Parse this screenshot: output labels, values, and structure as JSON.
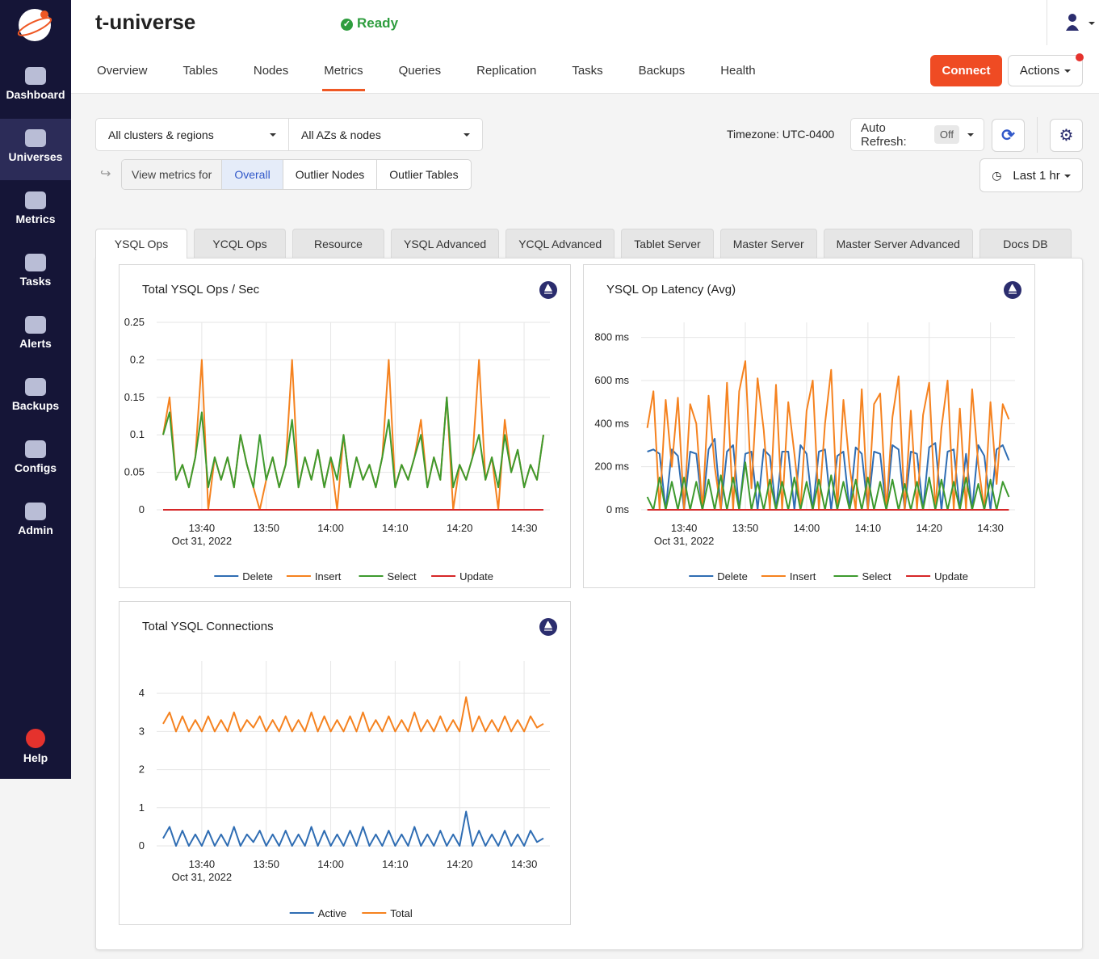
{
  "sidebar": {
    "items": [
      "Dashboard",
      "Universes",
      "Metrics",
      "Tasks",
      "Alerts",
      "Backups",
      "Configs",
      "Admin"
    ],
    "active": 1,
    "help": "Help"
  },
  "header": {
    "title": "t-universe",
    "status": "Ready",
    "tabs": [
      "Overview",
      "Tables",
      "Nodes",
      "Metrics",
      "Queries",
      "Replication",
      "Tasks",
      "Backups",
      "Health"
    ],
    "active_tab": 3,
    "connect": "Connect",
    "actions": "Actions"
  },
  "filters": {
    "clusters": "All clusters & regions",
    "nodes": "All AZs & nodes",
    "timezone": "Timezone: UTC-0400",
    "auto_refresh": "Auto Refresh:",
    "auto_refresh_value": "Off",
    "view_metrics_for": "View metrics for",
    "view_options": [
      "Overall",
      "Outlier Nodes",
      "Outlier Tables"
    ],
    "active_view": 0,
    "time_range": "Last 1 hr"
  },
  "metric_tabs": [
    "YSQL Ops",
    "YCQL Ops",
    "Resource",
    "YSQL Advanced",
    "YCQL Advanced",
    "Tablet Server",
    "Master Server",
    "Master Server Advanced",
    "Docs DB"
  ],
  "active_metric_tab": 0,
  "chart_data": [
    {
      "type": "line",
      "title": "Total YSQL Ops / Sec",
      "x": [
        "13:34",
        "13:35",
        "13:36",
        "13:37",
        "13:38",
        "13:39",
        "13:40",
        "13:41",
        "13:42",
        "13:43",
        "13:44",
        "13:45",
        "13:46",
        "13:47",
        "13:48",
        "13:49",
        "13:50",
        "13:51",
        "13:52",
        "13:53",
        "13:54",
        "13:55",
        "13:56",
        "13:57",
        "13:58",
        "13:59",
        "14:00",
        "14:01",
        "14:02",
        "14:03",
        "14:04",
        "14:05",
        "14:06",
        "14:07",
        "14:08",
        "14:09",
        "14:10",
        "14:11",
        "14:12",
        "14:13",
        "14:14",
        "14:15",
        "14:16",
        "14:17",
        "14:18",
        "14:19",
        "14:20",
        "14:21",
        "14:22",
        "14:23",
        "14:24",
        "14:25",
        "14:26",
        "14:27",
        "14:28",
        "14:29",
        "14:30",
        "14:31",
        "14:32",
        "14:33"
      ],
      "xlim": [
        "13:33",
        "14:34"
      ],
      "xticks": [
        "13:40",
        "13:50",
        "14:00",
        "14:10",
        "14:20",
        "14:30"
      ],
      "date_label": "Oct 31, 2022",
      "ylim": [
        0,
        0.25
      ],
      "yticks": [
        0,
        0.05,
        0.1,
        0.15,
        0.2,
        0.25
      ],
      "grid": true,
      "series": [
        {
          "name": "Delete",
          "color": "#2f6db3",
          "values": [
            0,
            0,
            0,
            0,
            0,
            0,
            0,
            0,
            0,
            0,
            0,
            0,
            0,
            0,
            0,
            0,
            0,
            0,
            0,
            0,
            0,
            0,
            0,
            0,
            0,
            0,
            0,
            0,
            0,
            0,
            0,
            0,
            0,
            0,
            0,
            0,
            0,
            0,
            0,
            0,
            0,
            0,
            0,
            0,
            0,
            0,
            0,
            0,
            0,
            0,
            0,
            0,
            0,
            0,
            0,
            0,
            0,
            0,
            0,
            0
          ]
        },
        {
          "name": "Insert",
          "color": "#f5821f",
          "values": [
            0.1,
            0.15,
            0.04,
            0.06,
            0.03,
            0.07,
            0.2,
            0,
            0.07,
            0.04,
            0.07,
            0.03,
            0.1,
            0.06,
            0.03,
            0,
            0.04,
            0.07,
            0.03,
            0.06,
            0.2,
            0.03,
            0.07,
            0.04,
            0.08,
            0.03,
            0.07,
            0,
            0.1,
            0.03,
            0.07,
            0.04,
            0.06,
            0.03,
            0.07,
            0.2,
            0.03,
            0.06,
            0.04,
            0.07,
            0.12,
            0.03,
            0.07,
            0.04,
            0.15,
            0,
            0.06,
            0.04,
            0.07,
            0.2,
            0.04,
            0.07,
            0,
            0.12,
            0.05,
            0.08,
            0.03,
            0.06,
            0.04,
            0.1
          ]
        },
        {
          "name": "Select",
          "color": "#3d9a2e",
          "values": [
            0.1,
            0.13,
            0.04,
            0.06,
            0.03,
            0.07,
            0.13,
            0.03,
            0.07,
            0.04,
            0.07,
            0.03,
            0.1,
            0.06,
            0.03,
            0.1,
            0.04,
            0.07,
            0.03,
            0.06,
            0.12,
            0.03,
            0.07,
            0.04,
            0.08,
            0.03,
            0.07,
            0.04,
            0.1,
            0.03,
            0.07,
            0.04,
            0.06,
            0.03,
            0.07,
            0.12,
            0.03,
            0.06,
            0.04,
            0.07,
            0.1,
            0.03,
            0.07,
            0.04,
            0.15,
            0.03,
            0.06,
            0.04,
            0.07,
            0.1,
            0.04,
            0.07,
            0.03,
            0.1,
            0.05,
            0.08,
            0.03,
            0.06,
            0.04,
            0.1
          ]
        },
        {
          "name": "Update",
          "color": "#d62728",
          "values": [
            0,
            0,
            0,
            0,
            0,
            0,
            0,
            0,
            0,
            0,
            0,
            0,
            0,
            0,
            0,
            0,
            0,
            0,
            0,
            0,
            0,
            0,
            0,
            0,
            0,
            0,
            0,
            0,
            0,
            0,
            0,
            0,
            0,
            0,
            0,
            0,
            0,
            0,
            0,
            0,
            0,
            0,
            0,
            0,
            0,
            0,
            0,
            0,
            0,
            0,
            0,
            0,
            0,
            0,
            0,
            0,
            0,
            0,
            0,
            0
          ]
        }
      ]
    },
    {
      "type": "line",
      "title": "YSQL Op Latency (Avg)",
      "x": [
        "13:34",
        "13:35",
        "13:36",
        "13:37",
        "13:38",
        "13:39",
        "13:40",
        "13:41",
        "13:42",
        "13:43",
        "13:44",
        "13:45",
        "13:46",
        "13:47",
        "13:48",
        "13:49",
        "13:50",
        "13:51",
        "13:52",
        "13:53",
        "13:54",
        "13:55",
        "13:56",
        "13:57",
        "13:58",
        "13:59",
        "14:00",
        "14:01",
        "14:02",
        "14:03",
        "14:04",
        "14:05",
        "14:06",
        "14:07",
        "14:08",
        "14:09",
        "14:10",
        "14:11",
        "14:12",
        "14:13",
        "14:14",
        "14:15",
        "14:16",
        "14:17",
        "14:18",
        "14:19",
        "14:20",
        "14:21",
        "14:22",
        "14:23",
        "14:24",
        "14:25",
        "14:26",
        "14:27",
        "14:28",
        "14:29",
        "14:30",
        "14:31",
        "14:32",
        "14:33"
      ],
      "xlim": [
        "13:33",
        "14:34"
      ],
      "xticks": [
        "13:40",
        "13:50",
        "14:00",
        "14:10",
        "14:20",
        "14:30"
      ],
      "date_label": "Oct 31, 2022",
      "ylim": [
        0,
        870
      ],
      "yticks": [
        {
          "value": 0,
          "label": "0 ms"
        },
        {
          "value": 200,
          "label": "200 ms"
        },
        {
          "value": 400,
          "label": "400 ms"
        },
        {
          "value": 600,
          "label": "600 ms"
        },
        {
          "value": 800,
          "label": "800 ms"
        }
      ],
      "grid": true,
      "series": [
        {
          "name": "Delete",
          "color": "#2f6db3",
          "values": [
            270,
            280,
            260,
            0,
            280,
            250,
            0,
            270,
            260,
            0,
            280,
            330,
            0,
            270,
            300,
            0,
            260,
            270,
            0,
            280,
            250,
            0,
            270,
            270,
            0,
            300,
            260,
            0,
            270,
            280,
            0,
            250,
            270,
            0,
            290,
            260,
            0,
            270,
            260,
            0,
            300,
            280,
            0,
            270,
            260,
            0,
            290,
            310,
            0,
            270,
            280,
            0,
            260,
            0,
            300,
            250,
            0,
            280,
            300,
            230
          ]
        },
        {
          "name": "Insert",
          "color": "#f5821f",
          "values": [
            380,
            550,
            0,
            510,
            200,
            520,
            0,
            490,
            400,
            0,
            530,
            200,
            0,
            590,
            0,
            550,
            690,
            100,
            610,
            370,
            0,
            580,
            0,
            500,
            260,
            0,
            460,
            600,
            0,
            400,
            650,
            0,
            510,
            200,
            0,
            560,
            0,
            490,
            540,
            0,
            430,
            620,
            0,
            460,
            0,
            440,
            590,
            0,
            380,
            600,
            0,
            470,
            0,
            560,
            210,
            0,
            500,
            120,
            490,
            420
          ]
        },
        {
          "name": "Select",
          "color": "#3d9a2e",
          "values": [
            60,
            0,
            150,
            0,
            130,
            0,
            150,
            0,
            130,
            0,
            140,
            0,
            160,
            0,
            150,
            0,
            220,
            0,
            130,
            0,
            140,
            0,
            130,
            0,
            150,
            0,
            130,
            0,
            140,
            0,
            160,
            0,
            130,
            0,
            140,
            0,
            150,
            0,
            130,
            0,
            140,
            0,
            120,
            0,
            130,
            0,
            150,
            0,
            140,
            0,
            130,
            0,
            150,
            0,
            120,
            0,
            140,
            0,
            130,
            60
          ]
        },
        {
          "name": "Update",
          "color": "#d62728",
          "values": [
            0,
            0,
            0,
            0,
            0,
            0,
            0,
            0,
            0,
            0,
            0,
            0,
            0,
            0,
            0,
            0,
            0,
            0,
            0,
            0,
            0,
            0,
            0,
            0,
            0,
            0,
            0,
            0,
            0,
            0,
            0,
            0,
            0,
            0,
            0,
            0,
            0,
            0,
            0,
            0,
            0,
            0,
            0,
            0,
            0,
            0,
            0,
            0,
            0,
            0,
            0,
            0,
            0,
            0,
            0,
            0,
            0,
            0,
            0,
            0
          ]
        }
      ]
    },
    {
      "type": "line",
      "title": "Total YSQL Connections",
      "x": [
        "13:34",
        "13:35",
        "13:36",
        "13:37",
        "13:38",
        "13:39",
        "13:40",
        "13:41",
        "13:42",
        "13:43",
        "13:44",
        "13:45",
        "13:46",
        "13:47",
        "13:48",
        "13:49",
        "13:50",
        "13:51",
        "13:52",
        "13:53",
        "13:54",
        "13:55",
        "13:56",
        "13:57",
        "13:58",
        "13:59",
        "14:00",
        "14:01",
        "14:02",
        "14:03",
        "14:04",
        "14:05",
        "14:06",
        "14:07",
        "14:08",
        "14:09",
        "14:10",
        "14:11",
        "14:12",
        "14:13",
        "14:14",
        "14:15",
        "14:16",
        "14:17",
        "14:18",
        "14:19",
        "14:20",
        "14:21",
        "14:22",
        "14:23",
        "14:24",
        "14:25",
        "14:26",
        "14:27",
        "14:28",
        "14:29",
        "14:30",
        "14:31",
        "14:32",
        "14:33"
      ],
      "xlim": [
        "13:33",
        "14:34"
      ],
      "xticks": [
        "13:40",
        "13:50",
        "14:00",
        "14:10",
        "14:20",
        "14:30"
      ],
      "date_label": "Oct 31, 2022",
      "ylim": [
        0,
        4.85
      ],
      "yticks": [
        0,
        1,
        2,
        3,
        4
      ],
      "grid": true,
      "series": [
        {
          "name": "Active",
          "color": "#2f6db3",
          "values": [
            0.2,
            0.5,
            0,
            0.4,
            0,
            0.3,
            0,
            0.4,
            0,
            0.3,
            0,
            0.5,
            0,
            0.3,
            0.1,
            0.4,
            0,
            0.3,
            0,
            0.4,
            0,
            0.3,
            0,
            0.5,
            0,
            0.4,
            0,
            0.3,
            0,
            0.4,
            0,
            0.5,
            0,
            0.3,
            0,
            0.4,
            0,
            0.3,
            0,
            0.5,
            0,
            0.3,
            0,
            0.4,
            0,
            0.3,
            0,
            0.9,
            0,
            0.4,
            0,
            0.3,
            0,
            0.4,
            0,
            0.3,
            0,
            0.4,
            0.1,
            0.2
          ]
        },
        {
          "name": "Total",
          "color": "#f5821f",
          "values": [
            3.2,
            3.5,
            3.0,
            3.4,
            3.0,
            3.3,
            3.0,
            3.4,
            3.0,
            3.3,
            3.0,
            3.5,
            3.0,
            3.3,
            3.1,
            3.4,
            3.0,
            3.3,
            3.0,
            3.4,
            3.0,
            3.3,
            3.0,
            3.5,
            3.0,
            3.4,
            3.0,
            3.3,
            3.0,
            3.4,
            3.0,
            3.5,
            3.0,
            3.3,
            3.0,
            3.4,
            3.0,
            3.3,
            3.0,
            3.5,
            3.0,
            3.3,
            3.0,
            3.4,
            3.0,
            3.3,
            3.0,
            3.9,
            3.0,
            3.4,
            3.0,
            3.3,
            3.0,
            3.4,
            3.0,
            3.3,
            3.0,
            3.4,
            3.1,
            3.2
          ]
        }
      ]
    }
  ]
}
